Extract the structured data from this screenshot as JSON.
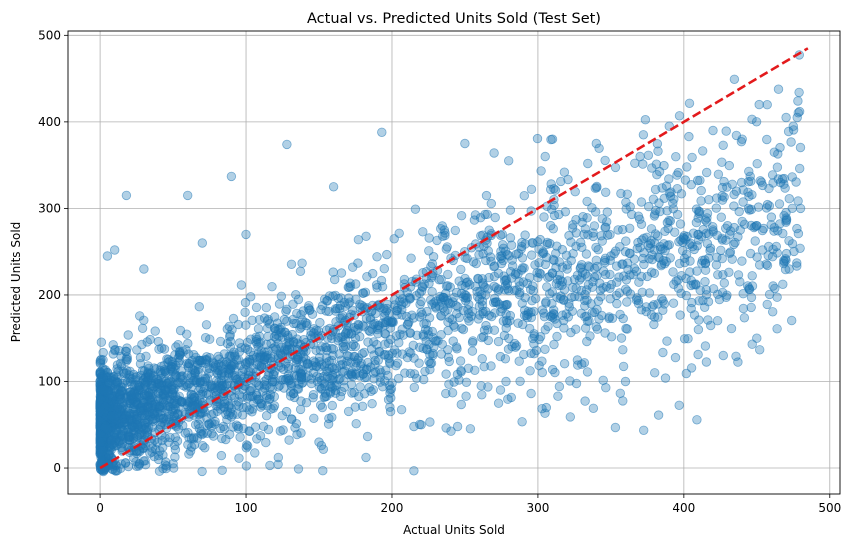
{
  "chart_data": {
    "type": "scatter",
    "title": "Actual vs. Predicted Units Sold (Test Set)",
    "xlabel": "Actual Units Sold",
    "ylabel": "Predicted Units Sold",
    "xlim": [
      -22,
      507
    ],
    "ylim": [
      -30,
      505
    ],
    "xticks": [
      0,
      100,
      200,
      300,
      400,
      500
    ],
    "yticks": [
      0,
      100,
      200,
      300,
      400,
      500
    ],
    "grid": true,
    "point_color": "#1f77b4",
    "point_alpha": 0.35,
    "reference_line": {
      "x": [
        0,
        485
      ],
      "y": [
        0,
        485
      ],
      "color": "#e31a1c",
      "style": "dashed"
    },
    "series": [
      {
        "points_sample_note_free": true,
        "x": [
          2,
          5,
          8,
          12,
          15,
          18,
          20,
          25,
          28,
          30,
          35,
          40,
          45,
          50,
          55,
          60,
          65,
          70,
          75,
          80,
          85,
          90,
          95,
          100,
          105,
          110,
          115,
          120,
          125,
          130,
          140,
          150,
          160,
          170,
          180,
          190,
          200,
          210,
          220,
          230,
          240,
          250,
          260,
          270,
          280,
          290,
          300,
          310,
          320,
          330,
          340,
          350,
          360,
          370,
          380,
          390,
          400,
          410,
          420,
          430,
          440,
          450,
          460,
          470,
          480,
          128,
          193,
          397,
          479,
          338,
          427,
          18,
          60,
          90,
          215,
          245,
          250,
          305,
          270,
          160,
          5,
          10,
          30,
          70,
          100,
          8,
          40,
          25,
          50,
          150,
          220,
          330,
          360,
          380,
          410,
          450,
          470,
          420,
          440,
          462,
          475,
          340,
          370,
          390,
          310,
          280
        ],
        "y": [
          20,
          45,
          60,
          70,
          75,
          80,
          60,
          85,
          70,
          90,
          95,
          80,
          100,
          90,
          105,
          95,
          110,
          100,
          115,
          110,
          120,
          118,
          125,
          120,
          130,
          128,
          135,
          140,
          130,
          145,
          140,
          150,
          160,
          155,
          165,
          160,
          170,
          175,
          180,
          185,
          190,
          200,
          195,
          210,
          205,
          215,
          220,
          225,
          230,
          235,
          240,
          245,
          250,
          255,
          260,
          258,
          265,
          270,
          275,
          280,
          285,
          280,
          290,
          295,
          300,
          374,
          388,
          407,
          434,
          69,
          130,
          315,
          315,
          337,
          48,
          48,
          375,
          360,
          364,
          325,
          245,
          252,
          230,
          260,
          270,
          5,
          10,
          2,
          5,
          30,
          50,
          120,
          100,
          110,
          160,
          150,
          240,
          390,
          380,
          365,
          395,
          375,
          360,
          395,
          380,
          355
        ]
      }
    ]
  }
}
